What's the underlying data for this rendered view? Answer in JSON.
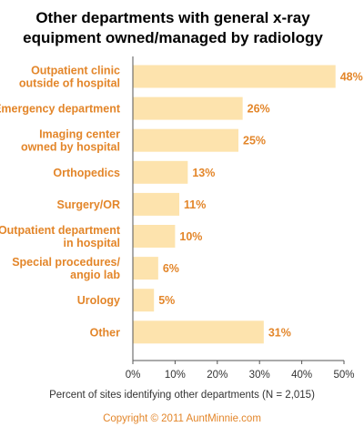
{
  "chart_data": {
    "type": "bar",
    "orientation": "horizontal",
    "title_lines": [
      "Other departments with general x-ray",
      "equipment owned/managed by radiology"
    ],
    "categories": [
      [
        "Outpatient clinic",
        "outside of hospital"
      ],
      [
        "Emergency department"
      ],
      [
        "Imaging center",
        "owned by hospital"
      ],
      [
        "Orthopedics"
      ],
      [
        "Surgery/OR"
      ],
      [
        "Outpatient department",
        "in hospital"
      ],
      [
        "Special procedures/",
        "angio lab"
      ],
      [
        "Urology"
      ],
      [
        "Other"
      ]
    ],
    "values": [
      48,
      26,
      25,
      13,
      11,
      10,
      6,
      5,
      31
    ],
    "value_labels": [
      "48%",
      "26%",
      "25%",
      "13%",
      "11%",
      "10%",
      "6%",
      "5%",
      "31%"
    ],
    "xlim": [
      0,
      50
    ],
    "xticks": [
      0,
      10,
      20,
      30,
      40,
      50
    ],
    "xtick_labels": [
      "0%",
      "10%",
      "20%",
      "30%",
      "40%",
      "50%"
    ],
    "xlabel": "Percent of sites identifying other departments (N = 2,015)",
    "grid": false,
    "legend": "none",
    "footer": "Copyright © 2011 AuntMinnie.com",
    "colors": {
      "bar": "#fde3ad",
      "label": "#e3862a",
      "title": "#000000",
      "axis": "#555555",
      "axis_text": "#333333",
      "footer": "#e3862a"
    }
  }
}
